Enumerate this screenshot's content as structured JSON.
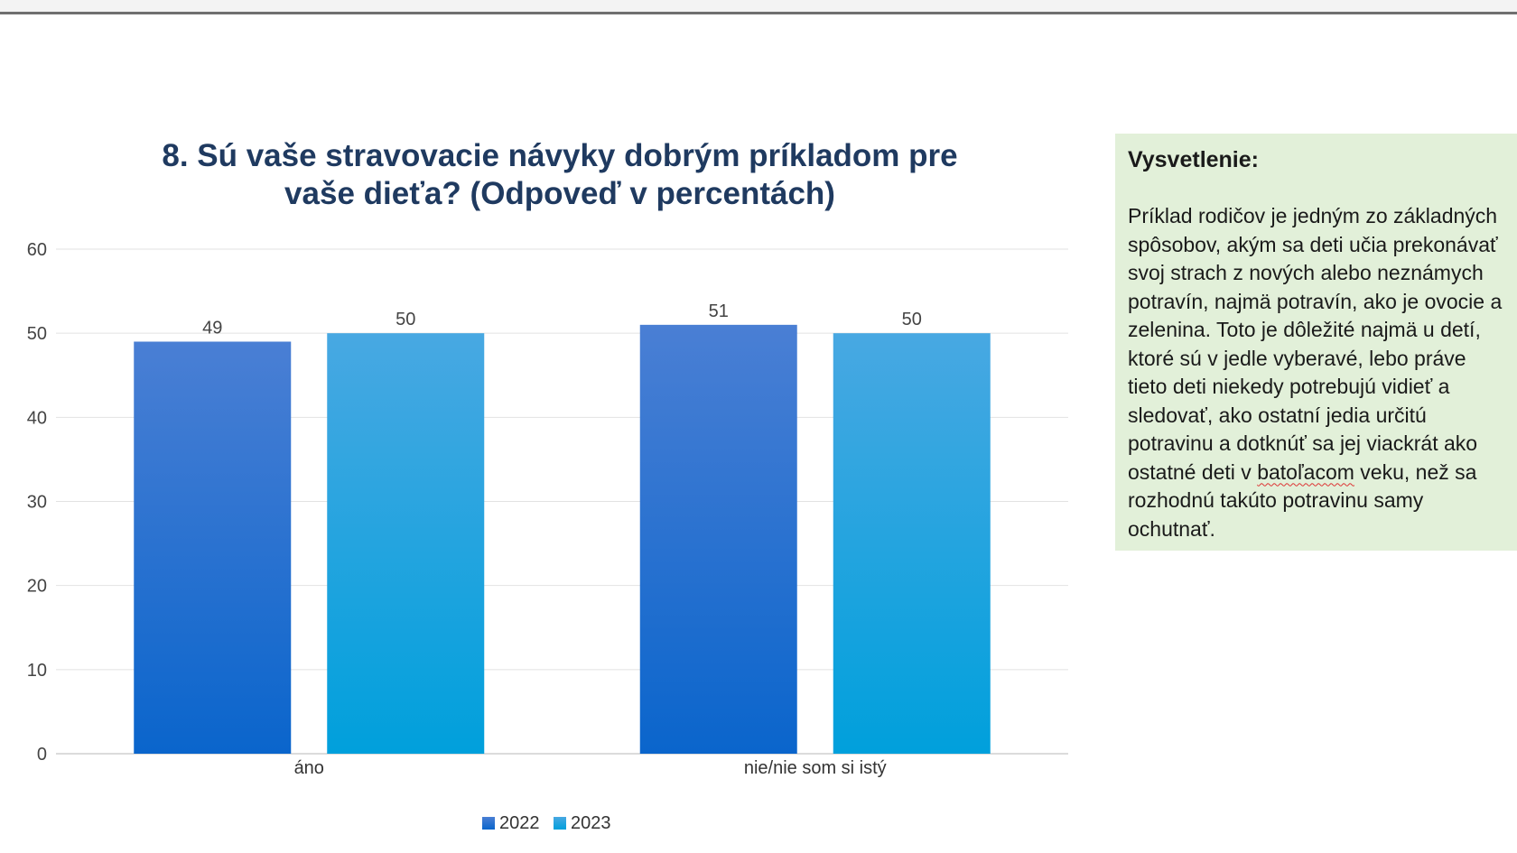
{
  "chart_data": {
    "type": "bar",
    "title": "8. Sú vaše stravovacie návyky dobrým príkladom pre\nvaše dieťa? (Odpoveď v percentách)",
    "categories": [
      "áno",
      "nie/nie som si istý"
    ],
    "series": [
      {
        "name": "2022",
        "values": [
          49,
          51
        ],
        "color_top": "#4a7fd4",
        "color_bottom": "#0a65cc"
      },
      {
        "name": "2023",
        "values": [
          50,
          50
        ],
        "color_top": "#48a8e2",
        "color_bottom": "#00a0dc"
      }
    ],
    "ylim": [
      0,
      60
    ],
    "yticks": [
      0,
      10,
      20,
      30,
      40,
      50,
      60
    ],
    "grid": true,
    "legend": "bottom",
    "data_labels": true
  },
  "explanation": {
    "heading": "Vysvetlenie:",
    "lines": [
      "Príklad rodičov je jedným zo základných",
      "spôsobov, akým sa deti učia prekonávať",
      "svoj strach z nových alebo neznámych",
      "potravín, najmä potravín, ako je ovocie a",
      "zelenina. Toto je dôležité najmä u detí,",
      "ktoré sú v jedle vyberavé, lebo práve",
      "tieto deti niekedy potrebujú vidieť a",
      "sledovať, ako ostatní jedia určitú",
      "potravinu a dotknúť sa jej viackrát ako"
    ],
    "line10_before": "ostatné deti v ",
    "line10_spell": "batoľacom",
    "line10_after": " veku, než sa",
    "lines_end": [
      "rozhodnú takúto potravinu samy",
      "ochutnať."
    ]
  }
}
